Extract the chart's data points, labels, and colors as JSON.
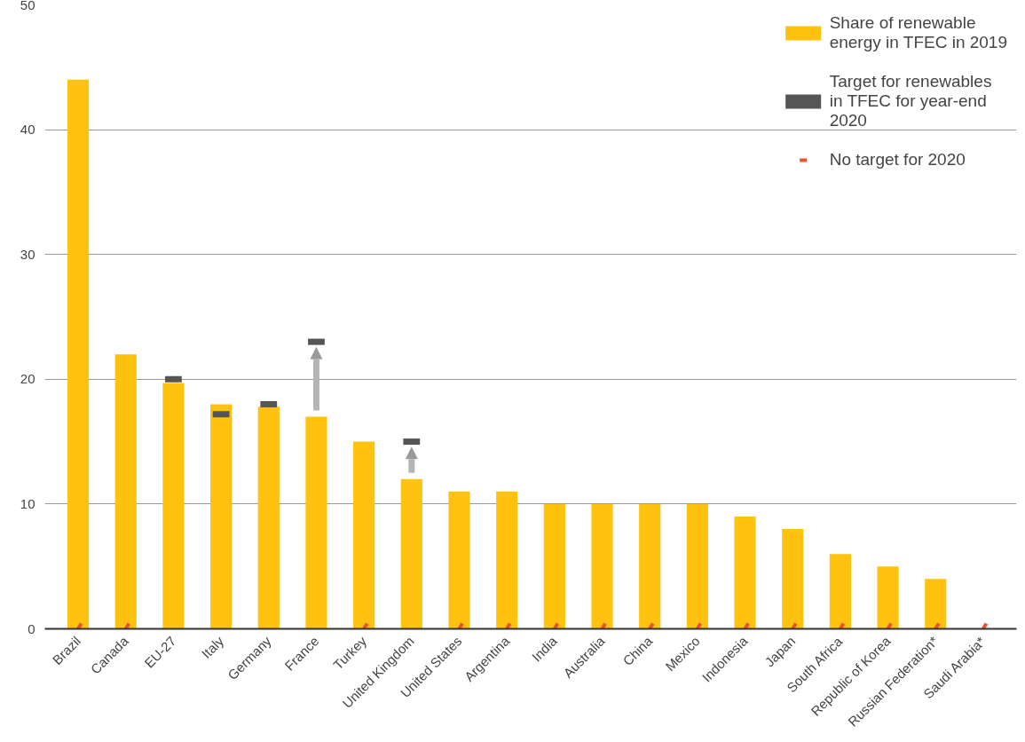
{
  "chart_data": {
    "type": "bar",
    "categories": [
      "Brazil",
      "Canada",
      "EU-27",
      "Italy",
      "Germany",
      "France",
      "Turkey",
      "United Kingdom",
      "United States",
      "Argentina",
      "India",
      "Australia",
      "China",
      "Mexico",
      "Indonesia",
      "Japan",
      "South Africa",
      "Republic of Korea",
      "Russian Federation*",
      "Saudi Arabia*"
    ],
    "series": [
      {
        "name": "Share of renewable energy in TFEC in 2019",
        "color": "#ffc20e",
        "values": [
          44,
          22,
          19.7,
          18,
          17.8,
          17,
          15,
          12,
          11,
          11,
          10,
          10,
          10,
          10,
          9,
          8,
          6,
          5,
          4,
          null
        ]
      },
      {
        "name": "Target for renewables in TFEC for year-end 2020",
        "type": "scatter",
        "color": "#555555",
        "values": [
          null,
          null,
          20,
          17.2,
          18,
          23,
          null,
          15,
          null,
          null,
          null,
          null,
          null,
          null,
          null,
          null,
          null,
          null,
          null,
          null
        ]
      },
      {
        "name": "No target for 2020",
        "type": "scatter",
        "color": "#e8532b",
        "values": [
          0,
          0,
          null,
          null,
          null,
          null,
          0,
          null,
          0,
          0,
          0,
          0,
          0,
          0,
          0,
          0,
          0,
          0,
          0,
          0
        ]
      }
    ],
    "ylim": [
      0,
      50
    ],
    "yticks": [
      0,
      10,
      20,
      30,
      40,
      50
    ],
    "grid": "y",
    "legend": "top right"
  }
}
